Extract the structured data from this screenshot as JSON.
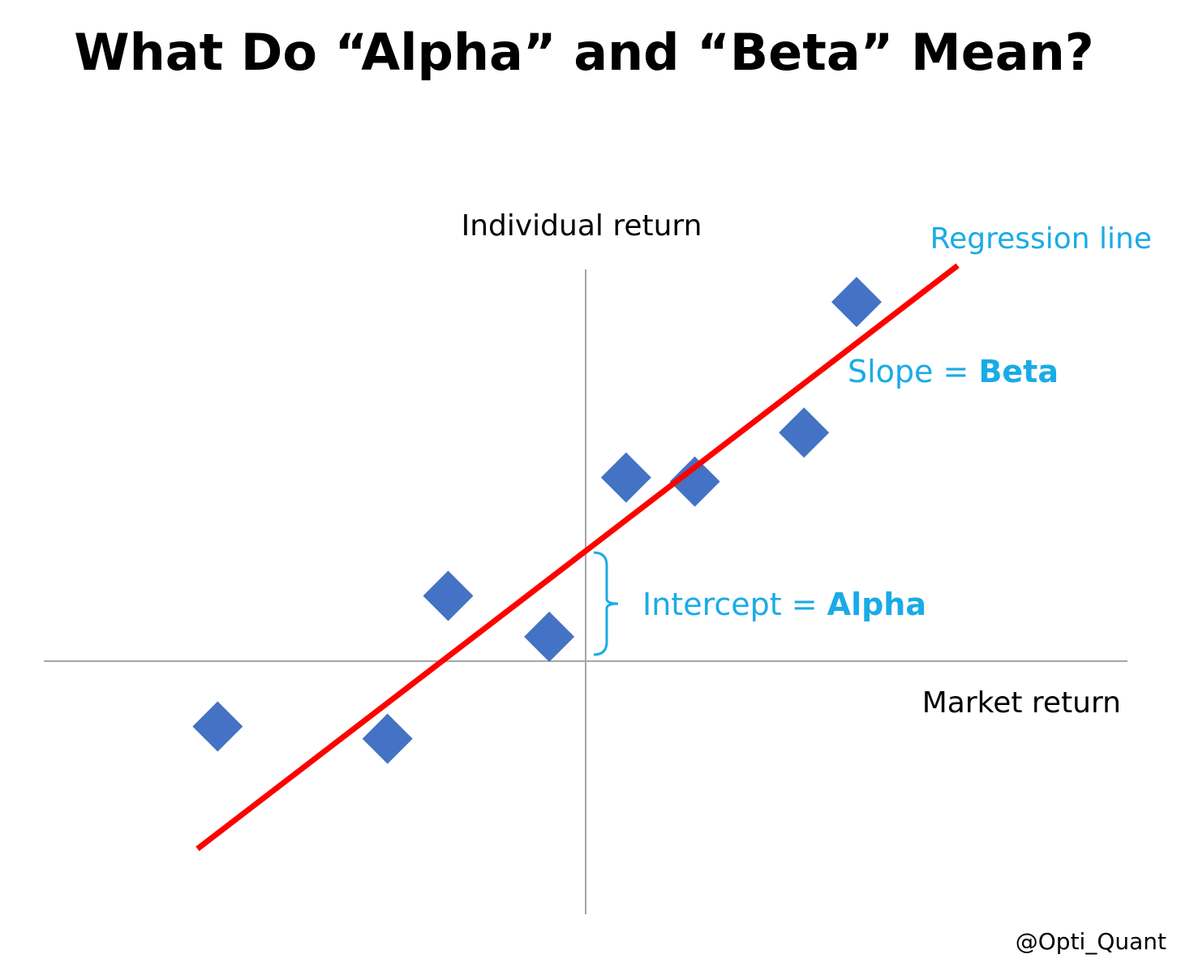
{
  "title": "What Do “Alpha” and “Beta” Mean?",
  "credit": "@Opti_Quant",
  "colors": {
    "points": "#4472C4",
    "regression_line": "#FF0000",
    "annotation": "#1AABE6",
    "axes": "#A6A6A6"
  },
  "chart_data": {
    "type": "scatter",
    "xlabel": "Market return",
    "ylabel": "Individual return",
    "xlim": [
      -6.7,
      6.7
    ],
    "ylim": [
      -3.1,
      4.8
    ],
    "grid": false,
    "axes_cross_at_origin": true,
    "marker": "diamond",
    "points": [
      {
        "x": -4.55,
        "y": -0.8
      },
      {
        "x": -2.45,
        "y": -0.95
      },
      {
        "x": -1.7,
        "y": 0.8
      },
      {
        "x": -0.45,
        "y": 0.3
      },
      {
        "x": 0.5,
        "y": 2.25
      },
      {
        "x": 1.35,
        "y": 2.2
      },
      {
        "x": 2.7,
        "y": 2.8
      },
      {
        "x": 3.35,
        "y": 4.4
      }
    ],
    "regression": {
      "label": "Regression line",
      "intercept": 1.35,
      "slope": 0.76,
      "x_range": [
        -4.8,
        4.6
      ]
    },
    "annotations": {
      "regression_label": "Regression line",
      "slope_prefix": "Slope = ",
      "slope_term": "Beta",
      "intercept_prefix": "Intercept = ",
      "intercept_term": "Alpha"
    }
  }
}
